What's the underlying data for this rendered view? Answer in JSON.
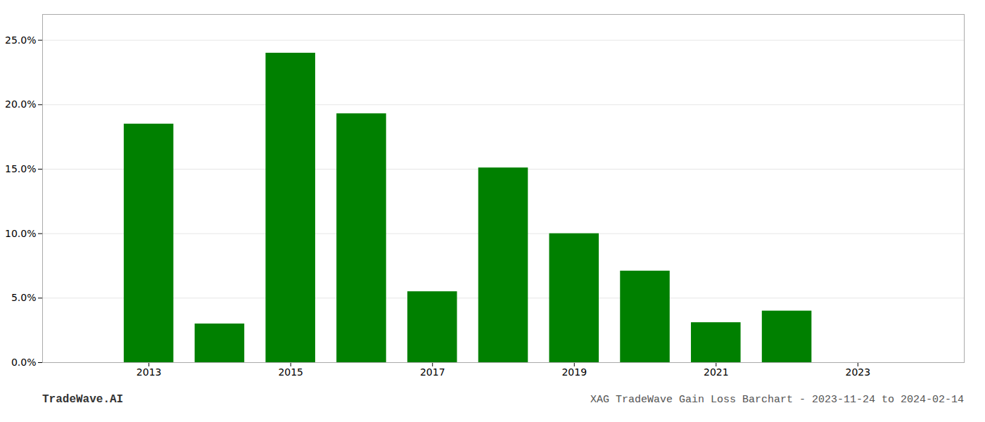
{
  "chart_data": {
    "type": "bar",
    "title": "XAG TradeWave Gain Loss Barchart - 2023-11-24 to 2024-02-14",
    "annotations": [
      "TradeWave.AI"
    ],
    "x": [
      2013,
      2014,
      2015,
      2016,
      2017,
      2018,
      2019,
      2020,
      2021,
      2022
    ],
    "values": [
      0.185,
      0.03,
      0.24,
      0.193,
      0.055,
      0.151,
      0.1,
      0.071,
      0.031,
      0.04
    ],
    "color": "#008000",
    "xlim": [
      2011.5,
      2024.5
    ],
    "xticks": [
      2013,
      2015,
      2017,
      2019,
      2021,
      2023
    ],
    "ylim": [
      0.0,
      0.27
    ],
    "yticks": [
      {
        "value": 0.0,
        "label": "0.0%"
      },
      {
        "value": 0.05,
        "label": "5.0%"
      },
      {
        "value": 0.1,
        "label": "10.0%"
      },
      {
        "value": 0.15,
        "label": "15.0%"
      },
      {
        "value": 0.2,
        "label": "20.0%"
      },
      {
        "value": 0.25,
        "label": "25.0%"
      }
    ],
    "grid": true
  }
}
